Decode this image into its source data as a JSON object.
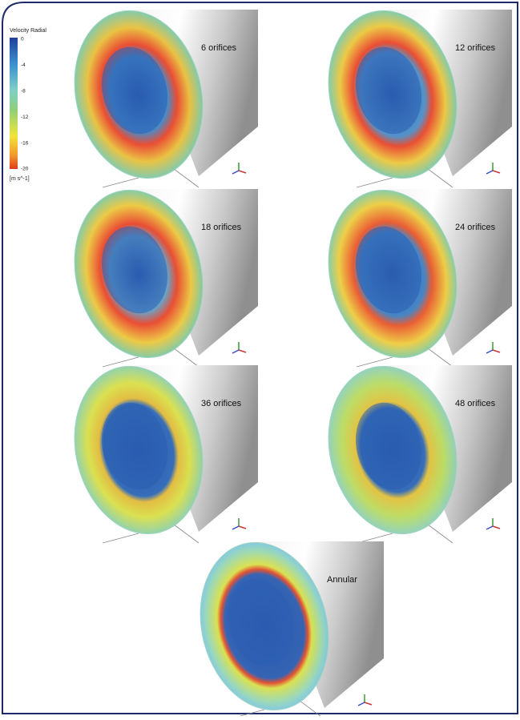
{
  "colorbar": {
    "title": "Velocity Radial",
    "ticks": [
      0,
      -4,
      -8,
      -12,
      -16,
      -20
    ],
    "unit": "[m s^-1]"
  },
  "panels": [
    {
      "label": "6 orifices"
    },
    {
      "label": "12 orifices"
    },
    {
      "label": "18 orifices"
    },
    {
      "label": "24 orifices"
    },
    {
      "label": "36 orifices"
    },
    {
      "label": "48 orifices"
    },
    {
      "label": "Annular"
    }
  ]
}
